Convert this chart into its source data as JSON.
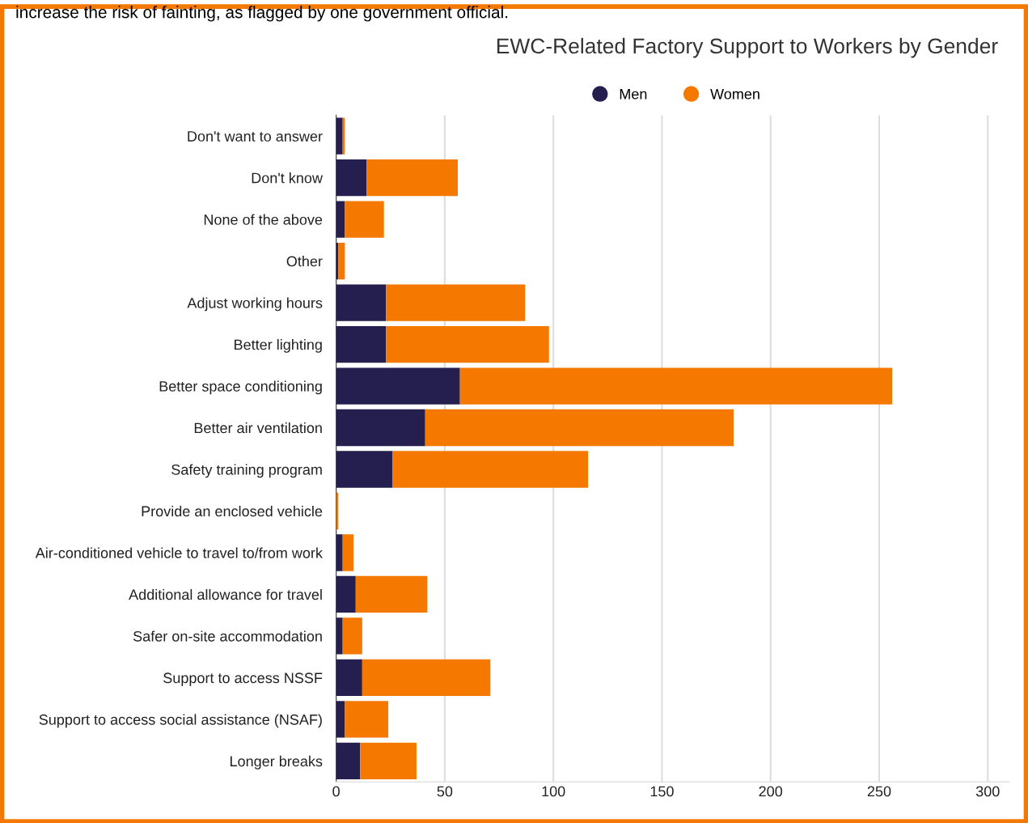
{
  "chart_data": {
    "type": "bar",
    "orientation": "horizontal",
    "stacked": true,
    "title": "EWC-Related Factory Support to Workers by Gender",
    "annotations": [
      "increase the risk of fainting, as flagged by one government official."
    ],
    "categories": [
      "Don't want to answer",
      "Don't know",
      "None of the above",
      "Other",
      "Adjust working hours",
      "Better lighting",
      "Better space conditioning",
      "Better air ventilation",
      "Safety training program",
      "Provide an enclosed vehicle",
      "Air-conditioned vehicle to travel to/from work",
      "Additional allowance for travel",
      "Safer on-site accommodation",
      "Support to access NSSF",
      "Support to access social assistance (NSAF)",
      "Longer breaks"
    ],
    "series": [
      {
        "name": "Men",
        "color": "#241f4f",
        "values": [
          3,
          14,
          4,
          1,
          23,
          23,
          57,
          41,
          26,
          0,
          3,
          9,
          3,
          12,
          4,
          11
        ]
      },
      {
        "name": "Women",
        "color": "#f57900",
        "values": [
          1,
          42,
          18,
          3,
          64,
          75,
          199,
          142,
          90,
          1,
          5,
          33,
          9,
          59,
          20,
          26
        ]
      }
    ],
    "xlim": [
      0,
      310
    ],
    "xticks": [
      0,
      50,
      100,
      150,
      200,
      250,
      300
    ],
    "grid": "x",
    "legend": "top"
  }
}
